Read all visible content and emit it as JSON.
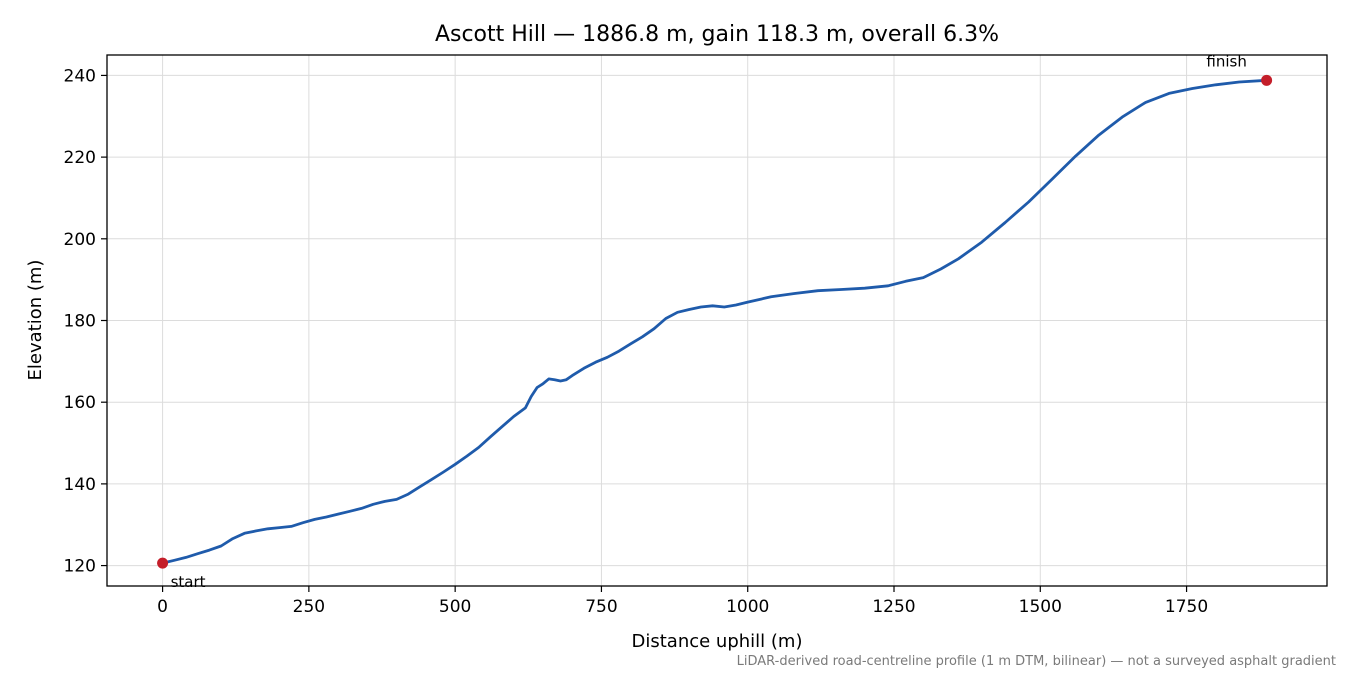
{
  "chart_data": {
    "type": "line",
    "title": "Ascott Hill — 1886.8 m, gain 118.3 m, overall 6.3%",
    "xlabel": "Distance uphill (m)",
    "ylabel": "Elevation (m)",
    "xlim": [
      -95,
      1990
    ],
    "ylim": [
      115,
      245
    ],
    "xticks": [
      0,
      250,
      500,
      750,
      1000,
      1250,
      1500,
      1750
    ],
    "yticks": [
      120,
      140,
      160,
      180,
      200,
      220,
      240
    ],
    "grid": true,
    "line_color": "#1f5bab",
    "marker_color": "#c41e2a",
    "series": [
      {
        "x": [
          0,
          20,
          40,
          60,
          80,
          100,
          120,
          140,
          160,
          180,
          200,
          220,
          240,
          260,
          280,
          300,
          320,
          340,
          360,
          380,
          400,
          420,
          440,
          460,
          480,
          500,
          520,
          540,
          560,
          580,
          600,
          620,
          630,
          640,
          650,
          660,
          670,
          680,
          690,
          700,
          720,
          740,
          760,
          780,
          800,
          820,
          840,
          860,
          880,
          900,
          920,
          940,
          960,
          980,
          1000,
          1040,
          1080,
          1120,
          1160,
          1200,
          1240,
          1270,
          1300,
          1330,
          1360,
          1400,
          1440,
          1480,
          1520,
          1560,
          1600,
          1640,
          1680,
          1720,
          1760,
          1800,
          1840,
          1886.8
        ],
        "y": [
          120.6,
          121.3,
          122.0,
          122.9,
          123.8,
          124.8,
          126.6,
          127.9,
          128.5,
          129.0,
          129.3,
          129.6,
          130.5,
          131.3,
          131.9,
          132.6,
          133.3,
          134.0,
          135.0,
          135.7,
          136.2,
          137.5,
          139.3,
          141.1,
          142.9,
          144.8,
          146.8,
          148.9,
          151.5,
          154.0,
          156.5,
          158.6,
          161.4,
          163.6,
          164.5,
          165.7,
          165.5,
          165.2,
          165.5,
          166.5,
          168.3,
          169.8,
          171.0,
          172.5,
          174.3,
          176.0,
          178.0,
          180.5,
          182.0,
          182.7,
          183.3,
          183.6,
          183.3,
          183.8,
          184.5,
          185.8,
          186.6,
          187.3,
          187.6,
          187.9,
          188.5,
          189.6,
          190.5,
          192.6,
          195.1,
          199.2,
          204.0,
          209.0,
          214.6,
          220.2,
          225.4,
          229.8,
          233.4,
          235.6,
          236.8,
          237.7,
          238.4,
          238.8
        ]
      }
    ],
    "annotations": {
      "start_label": "start",
      "finish_label": "finish",
      "start_point": [
        0,
        120.6
      ],
      "finish_point": [
        1886.8,
        238.8
      ]
    },
    "footnote": "LiDAR-derived road-centreline profile (1 m DTM, bilinear) — not a surveyed asphalt gradient"
  }
}
